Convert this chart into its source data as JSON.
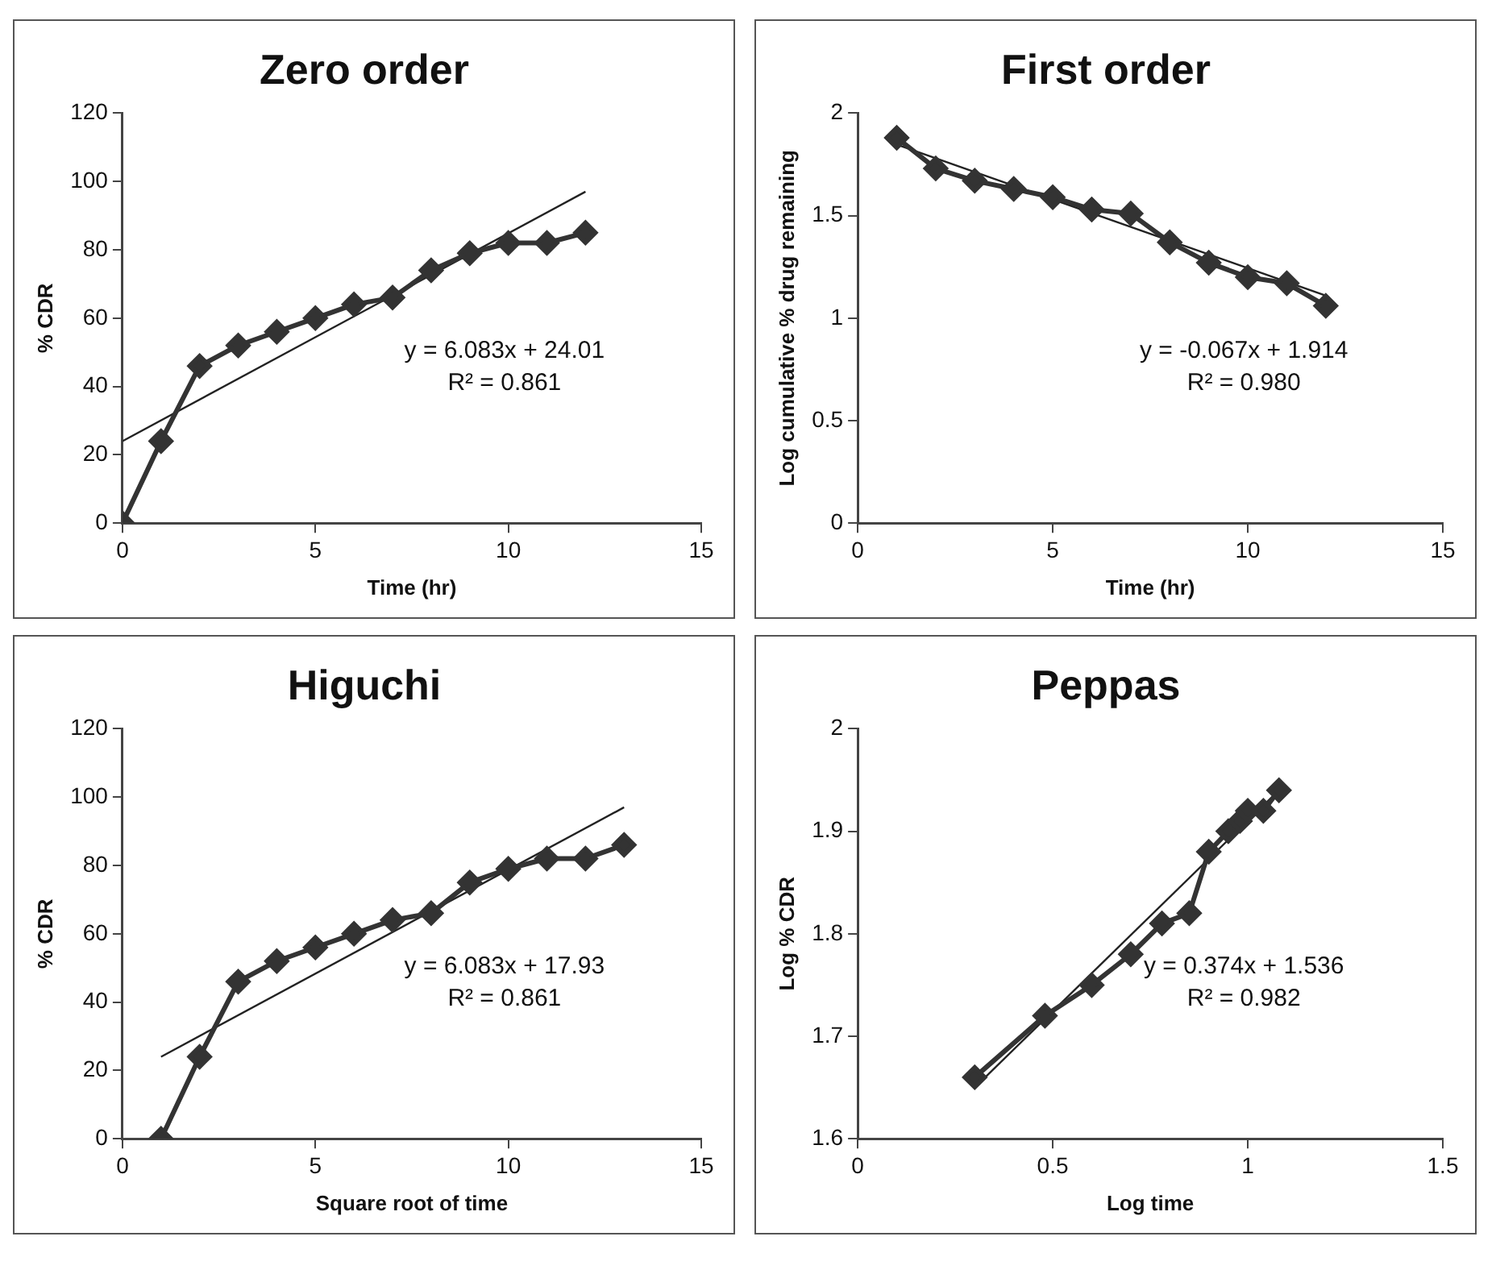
{
  "chart_data": [
    {
      "type": "line",
      "title": "Zero order",
      "xlabel": "Time (hr)",
      "ylabel": "% CDR",
      "xlim": [
        0,
        15
      ],
      "xticks": [
        0,
        5,
        10,
        15
      ],
      "ylim": [
        0,
        120
      ],
      "yticks": [
        0,
        20,
        40,
        60,
        80,
        100,
        120
      ],
      "grid": false,
      "legend": false,
      "annotations": [
        "y = 6.083x + 24.01",
        "R² = 0.861"
      ],
      "series": [
        {
          "type": "line",
          "color": "#333333",
          "marker": "diamond",
          "x": [
            0,
            1,
            2,
            3,
            4,
            5,
            6,
            7,
            8,
            9,
            10,
            11,
            12
          ],
          "values": [
            0,
            24,
            46,
            52,
            56,
            60,
            64,
            66,
            74,
            79,
            82,
            82,
            85
          ]
        },
        {
          "type": "line",
          "color": "#222222",
          "marker": "none",
          "x": [
            0,
            12
          ],
          "values": [
            24,
            97
          ]
        }
      ]
    },
    {
      "type": "line",
      "title": "First order",
      "xlabel": "Time (hr)",
      "ylabel": "Log cumulative % drug remaining",
      "xlim": [
        0,
        15
      ],
      "xticks": [
        0,
        5,
        10,
        15
      ],
      "ylim": [
        0,
        2
      ],
      "yticks": [
        0,
        0.5,
        1,
        1.5,
        2
      ],
      "grid": false,
      "legend": false,
      "annotations": [
        "y = -0.067x + 1.914",
        "R² = 0.980"
      ],
      "series": [
        {
          "type": "line",
          "color": "#333333",
          "marker": "diamond",
          "x": [
            1,
            2,
            3,
            4,
            5,
            6,
            7,
            8,
            9,
            10,
            11,
            12
          ],
          "values": [
            1.88,
            1.73,
            1.67,
            1.63,
            1.59,
            1.53,
            1.51,
            1.37,
            1.27,
            1.2,
            1.17,
            1.06
          ]
        },
        {
          "type": "line",
          "color": "#222222",
          "marker": "none",
          "x": [
            1,
            12
          ],
          "values": [
            1.847,
            1.11
          ]
        }
      ]
    },
    {
      "type": "line",
      "title": "Higuchi",
      "xlabel": "Square root of time",
      "ylabel": "% CDR",
      "xlim": [
        0,
        15
      ],
      "xticks": [
        0,
        5,
        10,
        15
      ],
      "ylim": [
        0,
        120
      ],
      "yticks": [
        0,
        20,
        40,
        60,
        80,
        100,
        120
      ],
      "grid": false,
      "legend": false,
      "annotations": [
        "y = 6.083x + 17.93",
        "R² = 0.861"
      ],
      "series": [
        {
          "type": "line",
          "color": "#333333",
          "marker": "diamond",
          "x": [
            1,
            2,
            3,
            4,
            5,
            6,
            7,
            8,
            9,
            10,
            11,
            12,
            13
          ],
          "values": [
            0,
            24,
            46,
            52,
            56,
            60,
            64,
            66,
            75,
            79,
            82,
            82,
            86
          ]
        },
        {
          "type": "line",
          "color": "#222222",
          "marker": "none",
          "x": [
            1,
            13
          ],
          "values": [
            24,
            97
          ]
        }
      ]
    },
    {
      "type": "line",
      "title": "Peppas",
      "xlabel": "Log time",
      "ylabel": "Log % CDR",
      "xlim": [
        0,
        1.5
      ],
      "xticks": [
        0,
        0.5,
        1,
        1.5
      ],
      "ylim": [
        1.6,
        2
      ],
      "yticks": [
        1.6,
        1.7,
        1.8,
        1.9,
        2
      ],
      "grid": false,
      "legend": false,
      "annotations": [
        "y = 0.374x + 1.536",
        "R² = 0.982"
      ],
      "series": [
        {
          "type": "line",
          "color": "#333333",
          "marker": "diamond",
          "x": [
            0.3,
            0.48,
            0.6,
            0.7,
            0.78,
            0.85,
            0.9,
            0.95,
            0.98,
            1.0,
            1.04,
            1.08
          ],
          "values": [
            1.66,
            1.72,
            1.75,
            1.78,
            1.81,
            1.82,
            1.88,
            1.9,
            1.91,
            1.92,
            1.92,
            1.94
          ]
        },
        {
          "type": "line",
          "color": "#222222",
          "marker": "none",
          "x": [
            0.3,
            1.08
          ],
          "values": [
            1.65,
            1.94
          ]
        }
      ]
    }
  ]
}
